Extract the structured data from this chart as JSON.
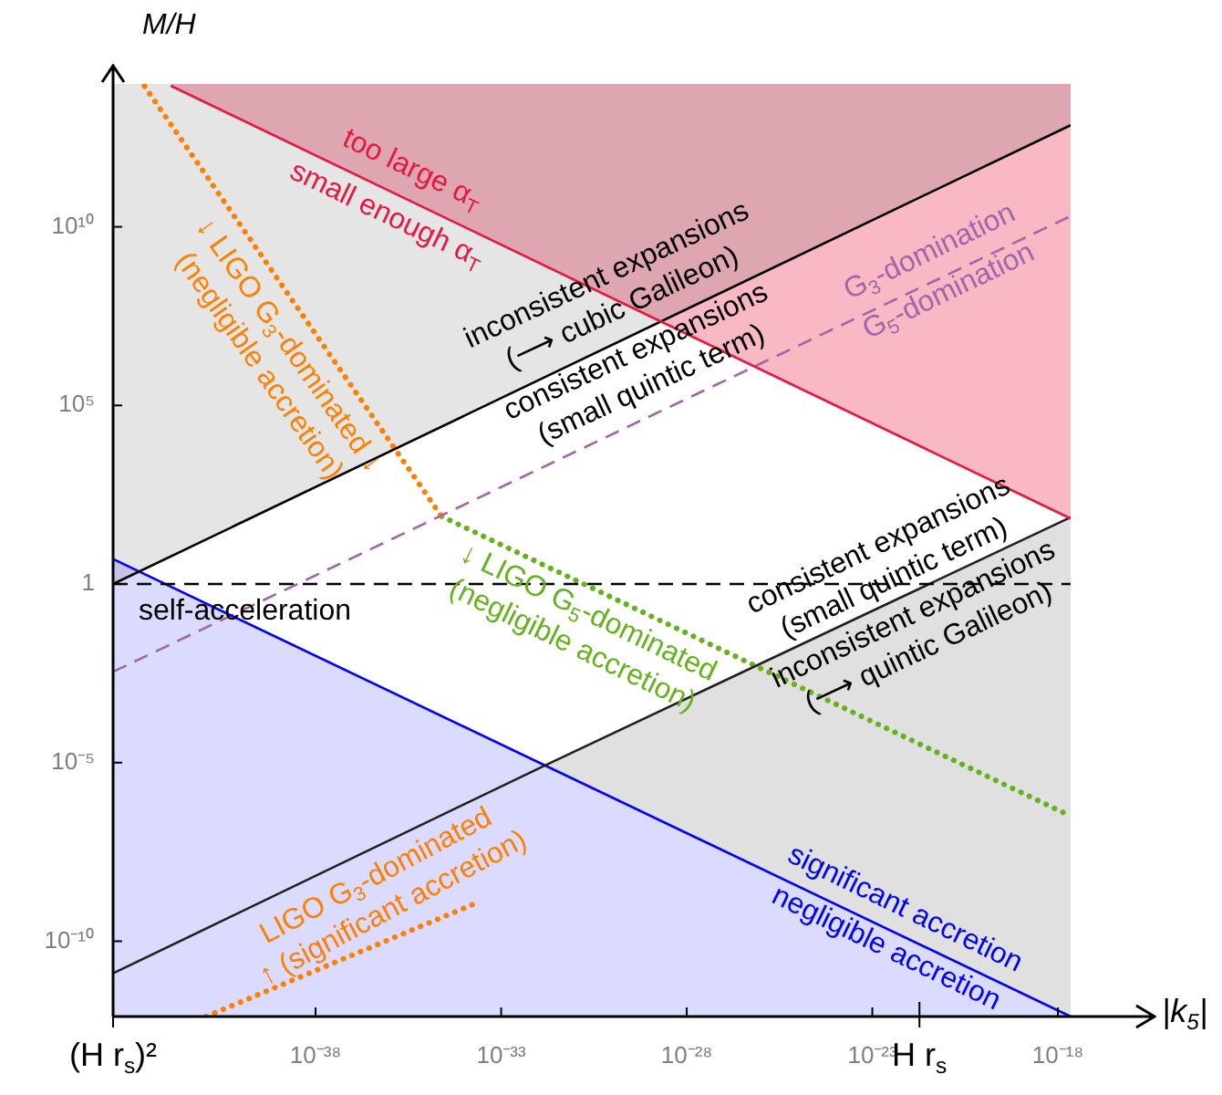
{
  "chart_data": {
    "type": "line",
    "log": "xy",
    "xlabel": "|k$_{5}$|",
    "ylabel": "M/H",
    "xlim": [
      3.5e-44,
      2.2e-18
    ],
    "ylim": [
      7.8e-13,
      100000000000000.0
    ],
    "xticks": [
      {
        "value": 3.5e-44,
        "label": "(H r$_{s}$)²"
      },
      {
        "value": 1e-38,
        "label": "10⁻³⁸"
      },
      {
        "value": 1e-33,
        "label": "10⁻³³"
      },
      {
        "value": 1e-28,
        "label": "10⁻²⁸"
      },
      {
        "value": 1e-23,
        "label": "10⁻²³"
      },
      {
        "value": 1.86e-22,
        "label": "H r$_{s}$"
      },
      {
        "value": 1e-18,
        "label": "10⁻¹⁸"
      }
    ],
    "yticks": [
      {
        "value": 1e-10,
        "label": "10⁻¹⁰"
      },
      {
        "value": 1e-05,
        "label": "10⁻⁵"
      },
      1,
      {
        "value": 100000.0,
        "label": "10⁵"
      },
      {
        "value": 10000000000.0,
        "label": "10¹⁰"
      }
    ],
    "series": [
      {
        "type": "line",
        "color": "#e8173f",
        "line_style": "solid",
        "x": [
          1.26e-42,
          2.2e-18
        ],
        "values": [
          89000000000000.0,
          68
        ],
        "lower": [
          89000000000000.0,
          68
        ],
        "upper": [
          100000000000000.0,
          100000000000000.0
        ]
      },
      {
        "type": "line",
        "color": "#000000",
        "line_style": "solid",
        "x": [
          3.5e-44,
          2.2e-18
        ],
        "values": [
          1,
          7000000000000.0
        ],
        "lower": [
          1,
          7000000000000.0
        ],
        "upper": [
          100000000000000.0,
          100000000000000.0
        ]
      },
      {
        "type": "line",
        "color": "#202020",
        "line_style": "solid",
        "x": [
          3.5e-44,
          1.38e-32,
          2.2e-18
        ],
        "values": [
          1.26e-11,
          8e-06,
          74
        ],
        "lower": [
          1.26e-11,
          8e-06,
          7.8e-13
        ],
        "upper": [
          1.26e-11,
          8e-06,
          74
        ]
      },
      {
        "type": "line",
        "color": "#0000ff",
        "line_style": "solid",
        "x": [
          3.5e-44,
          2.2e-18
        ],
        "values": [
          5,
          7.8e-13
        ],
        "lower": [
          7.8e-13,
          7.8e-13
        ],
        "upper": [
          5,
          7.8e-13
        ]
      },
      {
        "type": "line",
        "color": "#a066a8",
        "line_style": "dashed",
        "x": [
          3.5e-44,
          2.2e-18
        ],
        "values": [
          0.0035,
          20000000000.0
        ]
      },
      {
        "type": "line",
        "color": "#ff7f00",
        "line_style": "dotted",
        "x": [
          2.45e-43,
          2.45e-35
        ],
        "values": [
          87000000000000.0,
          79
        ]
      },
      {
        "type": "line",
        "color": "#66b21e",
        "line_style": "dotted",
        "x": [
          2.45e-35,
          2.2e-18
        ],
        "values": [
          79,
          3.2e-07
        ]
      },
      {
        "type": "line",
        "color": "#ff7f00",
        "line_style": "dotted",
        "x": [
          1.12e-41,
          2.5e-34
        ],
        "values": [
          7.8e-13,
          1.26e-09
        ]
      }
    ],
    "ref_lines": [
      {
        "axis": "y",
        "value": 1,
        "label": "self-acceleration",
        "color": "#000000",
        "line_style": "dashed"
      }
    ],
    "annotations": [
      "too large α$_{T}$",
      "small enough α$_{T}$",
      "↓ LIGO G$_{3}$-dominated ↓\n(negligible accretion)",
      "inconsistent expansions\n(⟶ cubic Galileon)",
      "consistent expansions\n(small quintic term)",
      "G$_{3}$-domination\nG$_{5}$-domination",
      "consistent expansions\n(small quintic term)",
      "inconsistent expansions\n(⟶ quintic Galileon)",
      "↓ LIGO G$_{5}$-dominated\n(negligible accretion)",
      "LIGO G$_{3}$-dominated\n↑ (significant accretion)",
      "significant accretion\nnegligible accretion"
    ]
  }
}
